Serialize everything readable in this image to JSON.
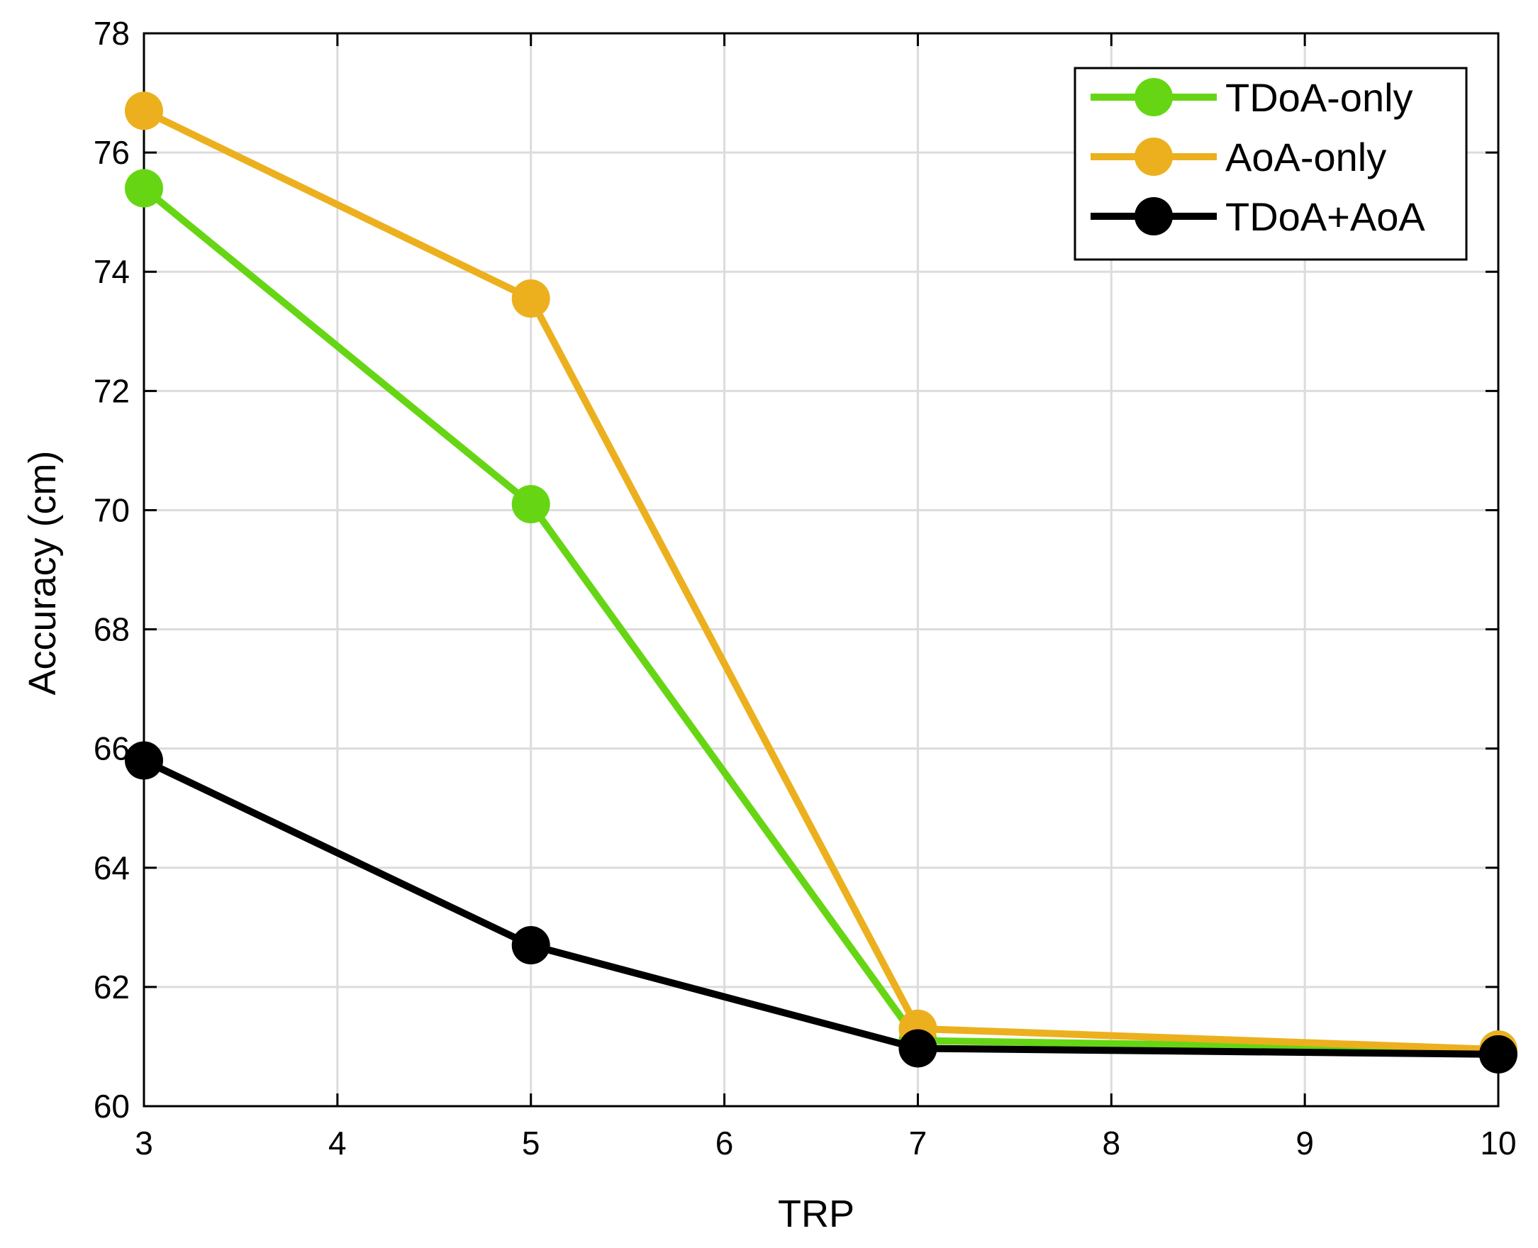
{
  "chart_data": {
    "type": "line",
    "title": "",
    "xlabel": "TRP",
    "ylabel": "Accuracy (cm)",
    "x": [
      3,
      5,
      7,
      10
    ],
    "xlim": [
      3,
      10
    ],
    "ylim": [
      60,
      78
    ],
    "xticks": [
      "3",
      "4",
      "5",
      "6",
      "7",
      "8",
      "9",
      "10"
    ],
    "yticks": [
      "60",
      "62",
      "64",
      "66",
      "68",
      "70",
      "72",
      "74",
      "76",
      "78"
    ],
    "grid": true,
    "legend_position": "top-right",
    "series": [
      {
        "name": "TDoA-only",
        "color": "#66d614",
        "values": [
          75.4,
          70.1,
          61.1,
          60.95
        ]
      },
      {
        "name": "AoA-only",
        "color": "#ecb01f",
        "values": [
          76.7,
          73.55,
          61.3,
          60.95
        ]
      },
      {
        "name": "TDoA+AoA",
        "color": "#000000",
        "values": [
          65.8,
          62.7,
          60.97,
          60.87
        ]
      }
    ]
  }
}
